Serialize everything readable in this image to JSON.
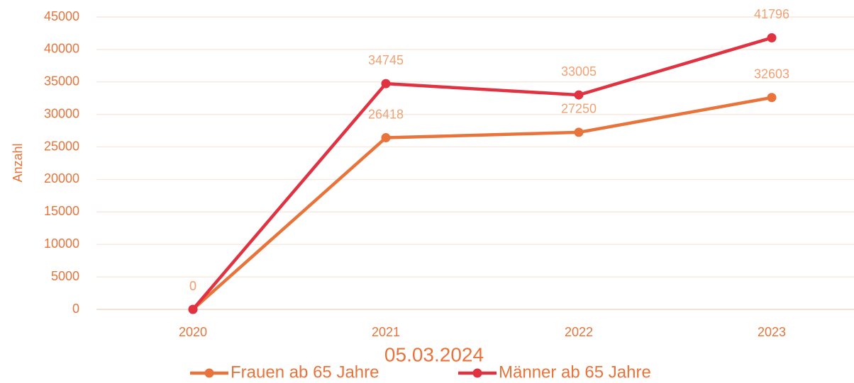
{
  "chart_data": {
    "type": "line",
    "x_label": "05.03.2024",
    "y_label": "Anzahl",
    "categories": [
      "2020",
      "2021",
      "2022",
      "2023"
    ],
    "series": [
      {
        "name": "Frauen ab 65 Jahre",
        "color": "#e8743b",
        "values": [
          0,
          26418,
          27250,
          32603
        ]
      },
      {
        "name": "Männer ab 65 Jahre",
        "color": "#e03241",
        "values": [
          0,
          34745,
          33005,
          41796
        ]
      }
    ],
    "ylim": [
      0,
      45000
    ],
    "yticks": [
      0,
      5000,
      10000,
      15000,
      20000,
      25000,
      30000,
      35000,
      40000,
      45000
    ],
    "grid": true,
    "legend": "bottom"
  }
}
